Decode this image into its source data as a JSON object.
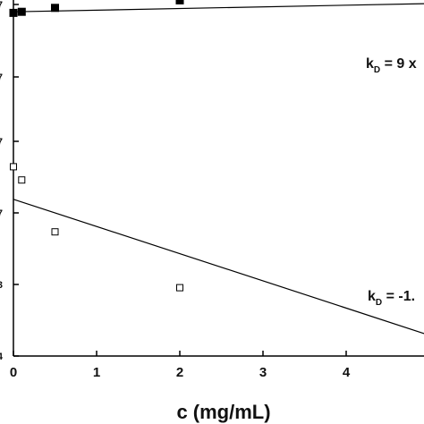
{
  "chart_data": {
    "type": "scatter",
    "xlabel": "c (mg/mL)",
    "ylabel": "",
    "xlim": [
      0,
      5
    ],
    "x_ticks": [
      "0",
      "1",
      "2",
      "3",
      "4"
    ],
    "y_partial_ticks": [
      "7",
      "7",
      "7",
      "7",
      "3",
      "4"
    ],
    "grid": false,
    "series": [
      {
        "marker": "filled-square",
        "color": "#000000",
        "points": [
          {
            "x": 0.0,
            "y": 0.959
          },
          {
            "x": 0.1,
            "y": 0.962
          },
          {
            "x": 0.5,
            "y": 0.973
          },
          {
            "x": 2.0,
            "y": 0.994
          }
        ],
        "fit": {
          "x": [
            0,
            5
          ],
          "y": [
            0.962,
            0.985
          ]
        },
        "annotation": {
          "k": "k",
          "sub": "D",
          "text": " = 9 x"
        }
      },
      {
        "marker": "open-square",
        "color": "#000000",
        "points": [
          {
            "x": 0.0,
            "y": 0.529
          },
          {
            "x": 0.1,
            "y": 0.492
          },
          {
            "x": 0.5,
            "y": 0.347
          },
          {
            "x": 2.0,
            "y": 0.191
          }
        ],
        "fit": {
          "x": [
            0,
            5
          ],
          "y": [
            0.438,
            0.058
          ]
        },
        "annotation": {
          "k": "k",
          "sub": "D",
          "text": " = -1."
        }
      }
    ]
  }
}
